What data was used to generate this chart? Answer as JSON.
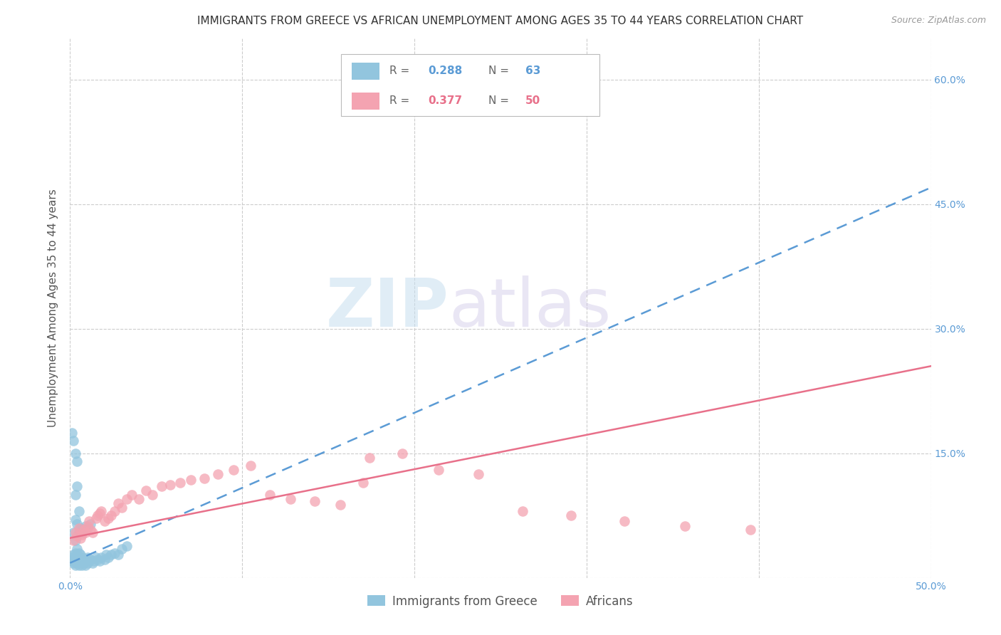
{
  "title": "IMMIGRANTS FROM GREECE VS AFRICAN UNEMPLOYMENT AMONG AGES 35 TO 44 YEARS CORRELATION CHART",
  "source": "Source: ZipAtlas.com",
  "ylabel": "Unemployment Among Ages 35 to 44 years",
  "xlim": [
    0.0,
    0.5
  ],
  "ylim": [
    0.0,
    0.65
  ],
  "xticks": [
    0.0,
    0.1,
    0.2,
    0.3,
    0.4,
    0.5
  ],
  "yticks": [
    0.0,
    0.15,
    0.3,
    0.45,
    0.6
  ],
  "xtick_labels": [
    "0.0%",
    "",
    "",
    "",
    "",
    "50.0%"
  ],
  "ytick_labels_right": [
    "",
    "15.0%",
    "30.0%",
    "45.0%",
    "60.0%"
  ],
  "greece_color": "#92c5de",
  "africa_color": "#f4a3b1",
  "greece_line_color": "#5b9bd5",
  "africa_line_color": "#e8708a",
  "greece_R": "0.288",
  "greece_N": "63",
  "africa_R": "0.377",
  "africa_N": "50",
  "greece_scatter_x": [
    0.001,
    0.001,
    0.002,
    0.002,
    0.002,
    0.003,
    0.003,
    0.003,
    0.003,
    0.004,
    0.004,
    0.004,
    0.004,
    0.005,
    0.005,
    0.005,
    0.005,
    0.006,
    0.006,
    0.006,
    0.007,
    0.007,
    0.007,
    0.008,
    0.008,
    0.009,
    0.009,
    0.01,
    0.01,
    0.011,
    0.012,
    0.013,
    0.014,
    0.015,
    0.016,
    0.017,
    0.018,
    0.02,
    0.021,
    0.022,
    0.024,
    0.026,
    0.028,
    0.03,
    0.033,
    0.003,
    0.004,
    0.005,
    0.006,
    0.007,
    0.008,
    0.009,
    0.01,
    0.012,
    0.001,
    0.002,
    0.003,
    0.004,
    0.002,
    0.003,
    0.004,
    0.005,
    0.003
  ],
  "greece_scatter_y": [
    0.02,
    0.025,
    0.018,
    0.022,
    0.028,
    0.015,
    0.02,
    0.025,
    0.03,
    0.018,
    0.022,
    0.028,
    0.035,
    0.015,
    0.02,
    0.025,
    0.03,
    0.018,
    0.022,
    0.028,
    0.015,
    0.02,
    0.025,
    0.018,
    0.022,
    0.015,
    0.02,
    0.018,
    0.025,
    0.02,
    0.022,
    0.018,
    0.02,
    0.025,
    0.022,
    0.02,
    0.025,
    0.022,
    0.028,
    0.025,
    0.028,
    0.03,
    0.028,
    0.035,
    0.038,
    0.1,
    0.065,
    0.055,
    0.06,
    0.055,
    0.058,
    0.062,
    0.06,
    0.065,
    0.175,
    0.165,
    0.15,
    0.14,
    0.055,
    0.07,
    0.11,
    0.08,
    0.045
  ],
  "africa_scatter_x": [
    0.002,
    0.003,
    0.004,
    0.005,
    0.006,
    0.007,
    0.008,
    0.009,
    0.01,
    0.011,
    0.012,
    0.013,
    0.015,
    0.016,
    0.017,
    0.018,
    0.02,
    0.022,
    0.024,
    0.026,
    0.028,
    0.03,
    0.033,
    0.036,
    0.04,
    0.044,
    0.048,
    0.053,
    0.058,
    0.064,
    0.07,
    0.078,
    0.086,
    0.095,
    0.105,
    0.116,
    0.128,
    0.142,
    0.157,
    0.174,
    0.193,
    0.214,
    0.237,
    0.263,
    0.291,
    0.322,
    0.357,
    0.395,
    0.19,
    0.17
  ],
  "africa_scatter_y": [
    0.045,
    0.055,
    0.05,
    0.06,
    0.048,
    0.052,
    0.058,
    0.055,
    0.062,
    0.068,
    0.058,
    0.055,
    0.072,
    0.075,
    0.078,
    0.08,
    0.068,
    0.072,
    0.075,
    0.08,
    0.09,
    0.085,
    0.095,
    0.1,
    0.095,
    0.105,
    0.1,
    0.11,
    0.112,
    0.115,
    0.118,
    0.12,
    0.125,
    0.13,
    0.135,
    0.1,
    0.095,
    0.092,
    0.088,
    0.145,
    0.15,
    0.13,
    0.125,
    0.08,
    0.075,
    0.068,
    0.062,
    0.058,
    0.58,
    0.115
  ],
  "greece_line_x": [
    0.0,
    0.5
  ],
  "greece_line_y": [
    0.018,
    0.47
  ],
  "africa_line_x": [
    0.0,
    0.5
  ],
  "africa_line_y": [
    0.048,
    0.255
  ],
  "watermark_zip": "ZIP",
  "watermark_atlas": "atlas",
  "title_fontsize": 11,
  "axis_label_fontsize": 11,
  "tick_fontsize": 10,
  "right_tick_color": "#5b9bd5",
  "grid_color": "#cccccc"
}
